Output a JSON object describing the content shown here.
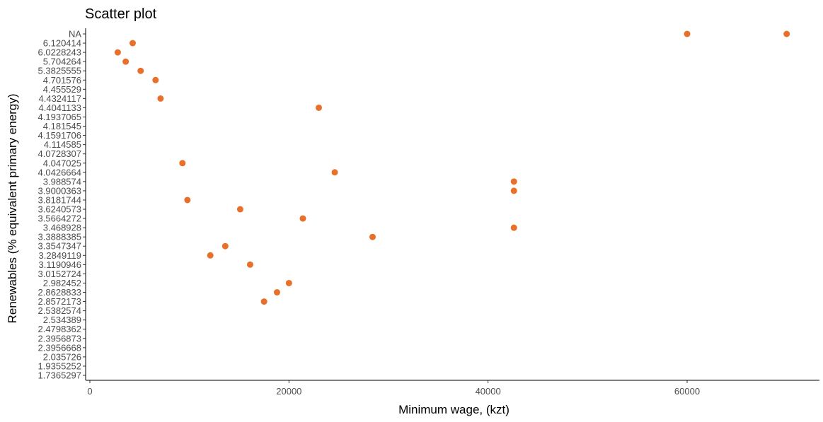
{
  "chart_data": {
    "type": "scatter",
    "title": "Scatter plot",
    "xlabel": "Minimum wage, (kzt)",
    "ylabel": "Renewables (% equivalent primary energy)",
    "xlim": [
      0,
      72000
    ],
    "x_ticks": [
      0,
      20000,
      40000,
      60000
    ],
    "x_tick_labels": [
      "0",
      "20000",
      "40000",
      "60000"
    ],
    "y_axis_type": "categorical",
    "y_categories": [
      "1.7365297",
      "1.9355252",
      "2.035726",
      "2.3956668",
      "2.3956873",
      "2.4798362",
      "2.534389",
      "2.5382574",
      "2.8572173",
      "2.8628833",
      "2.982452",
      "3.0152724",
      "3.1190946",
      "3.2849119",
      "3.3547347",
      "3.3888385",
      "3.468928",
      "3.5664272",
      "3.6240573",
      "3.8181744",
      "3.9000363",
      "3.988574",
      "4.0426664",
      "4.047025",
      "4.0728307",
      "4.114585",
      "4.1591706",
      "4.181545",
      "4.1937065",
      "4.4041133",
      "4.4324117",
      "4.455529",
      "4.701576",
      "5.3825555",
      "5.704264",
      "6.0228243",
      "6.120414",
      "NA"
    ],
    "point_color": "#e8702a",
    "grid": false,
    "legend": "none",
    "points": [
      {
        "x": 2800,
        "y": "6.0228243"
      },
      {
        "x": 4300,
        "y": "6.120414"
      },
      {
        "x": 3600,
        "y": "5.704264"
      },
      {
        "x": 5100,
        "y": "5.3825555"
      },
      {
        "x": 6600,
        "y": "4.701576"
      },
      {
        "x": 7100,
        "y": "4.4324117"
      },
      {
        "x": 9300,
        "y": "4.047025"
      },
      {
        "x": 9800,
        "y": "3.8181744"
      },
      {
        "x": 12100,
        "y": "3.2849119"
      },
      {
        "x": 13600,
        "y": "3.3547347"
      },
      {
        "x": 15100,
        "y": "3.6240573"
      },
      {
        "x": 16100,
        "y": "3.1190946"
      },
      {
        "x": 17500,
        "y": "2.8572173"
      },
      {
        "x": 18800,
        "y": "2.8628833"
      },
      {
        "x": 20000,
        "y": "2.982452"
      },
      {
        "x": 21400,
        "y": "3.5664272"
      },
      {
        "x": 23000,
        "y": "4.4041133"
      },
      {
        "x": 24600,
        "y": "4.0426664"
      },
      {
        "x": 28400,
        "y": "3.3888385"
      },
      {
        "x": 42600,
        "y": "3.988574"
      },
      {
        "x": 42600,
        "y": "3.9000363"
      },
      {
        "x": 42600,
        "y": "3.468928"
      },
      {
        "x": 60000,
        "y": "NA"
      },
      {
        "x": 70000,
        "y": "NA"
      }
    ]
  }
}
